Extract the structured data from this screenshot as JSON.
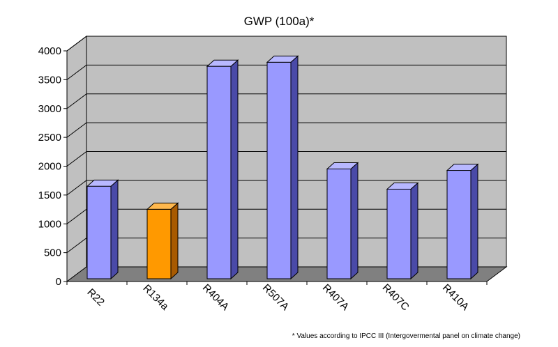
{
  "chart_data": {
    "type": "bar",
    "title": "GWP (100a)*",
    "categories": [
      "R22",
      "R134a",
      "R404A",
      "R507A",
      "R407A",
      "R407C",
      "R410A"
    ],
    "values": [
      1700,
      1300,
      3780,
      3850,
      2000,
      1650,
      1975
    ],
    "highlight": [
      false,
      true,
      false,
      false,
      false,
      false,
      false
    ],
    "ylim": [
      0,
      4000
    ],
    "yticks": [
      0,
      500,
      1000,
      1500,
      2000,
      2500,
      3000,
      3500,
      4000
    ],
    "xlabel": "",
    "ylabel": "",
    "grid": true,
    "footnote": "* Values according to IPCC III (Intergovermental panel on climate change)",
    "colors": {
      "wall": "#c0c0c0",
      "floor": "#808080",
      "bar_front": "#9999ff",
      "bar_side": "#4a4aa8",
      "bar_top": "#b8b8ff",
      "highlight_front": "#ff9900",
      "highlight_side": "#a85a00",
      "highlight_top": "#ffb84d"
    }
  }
}
